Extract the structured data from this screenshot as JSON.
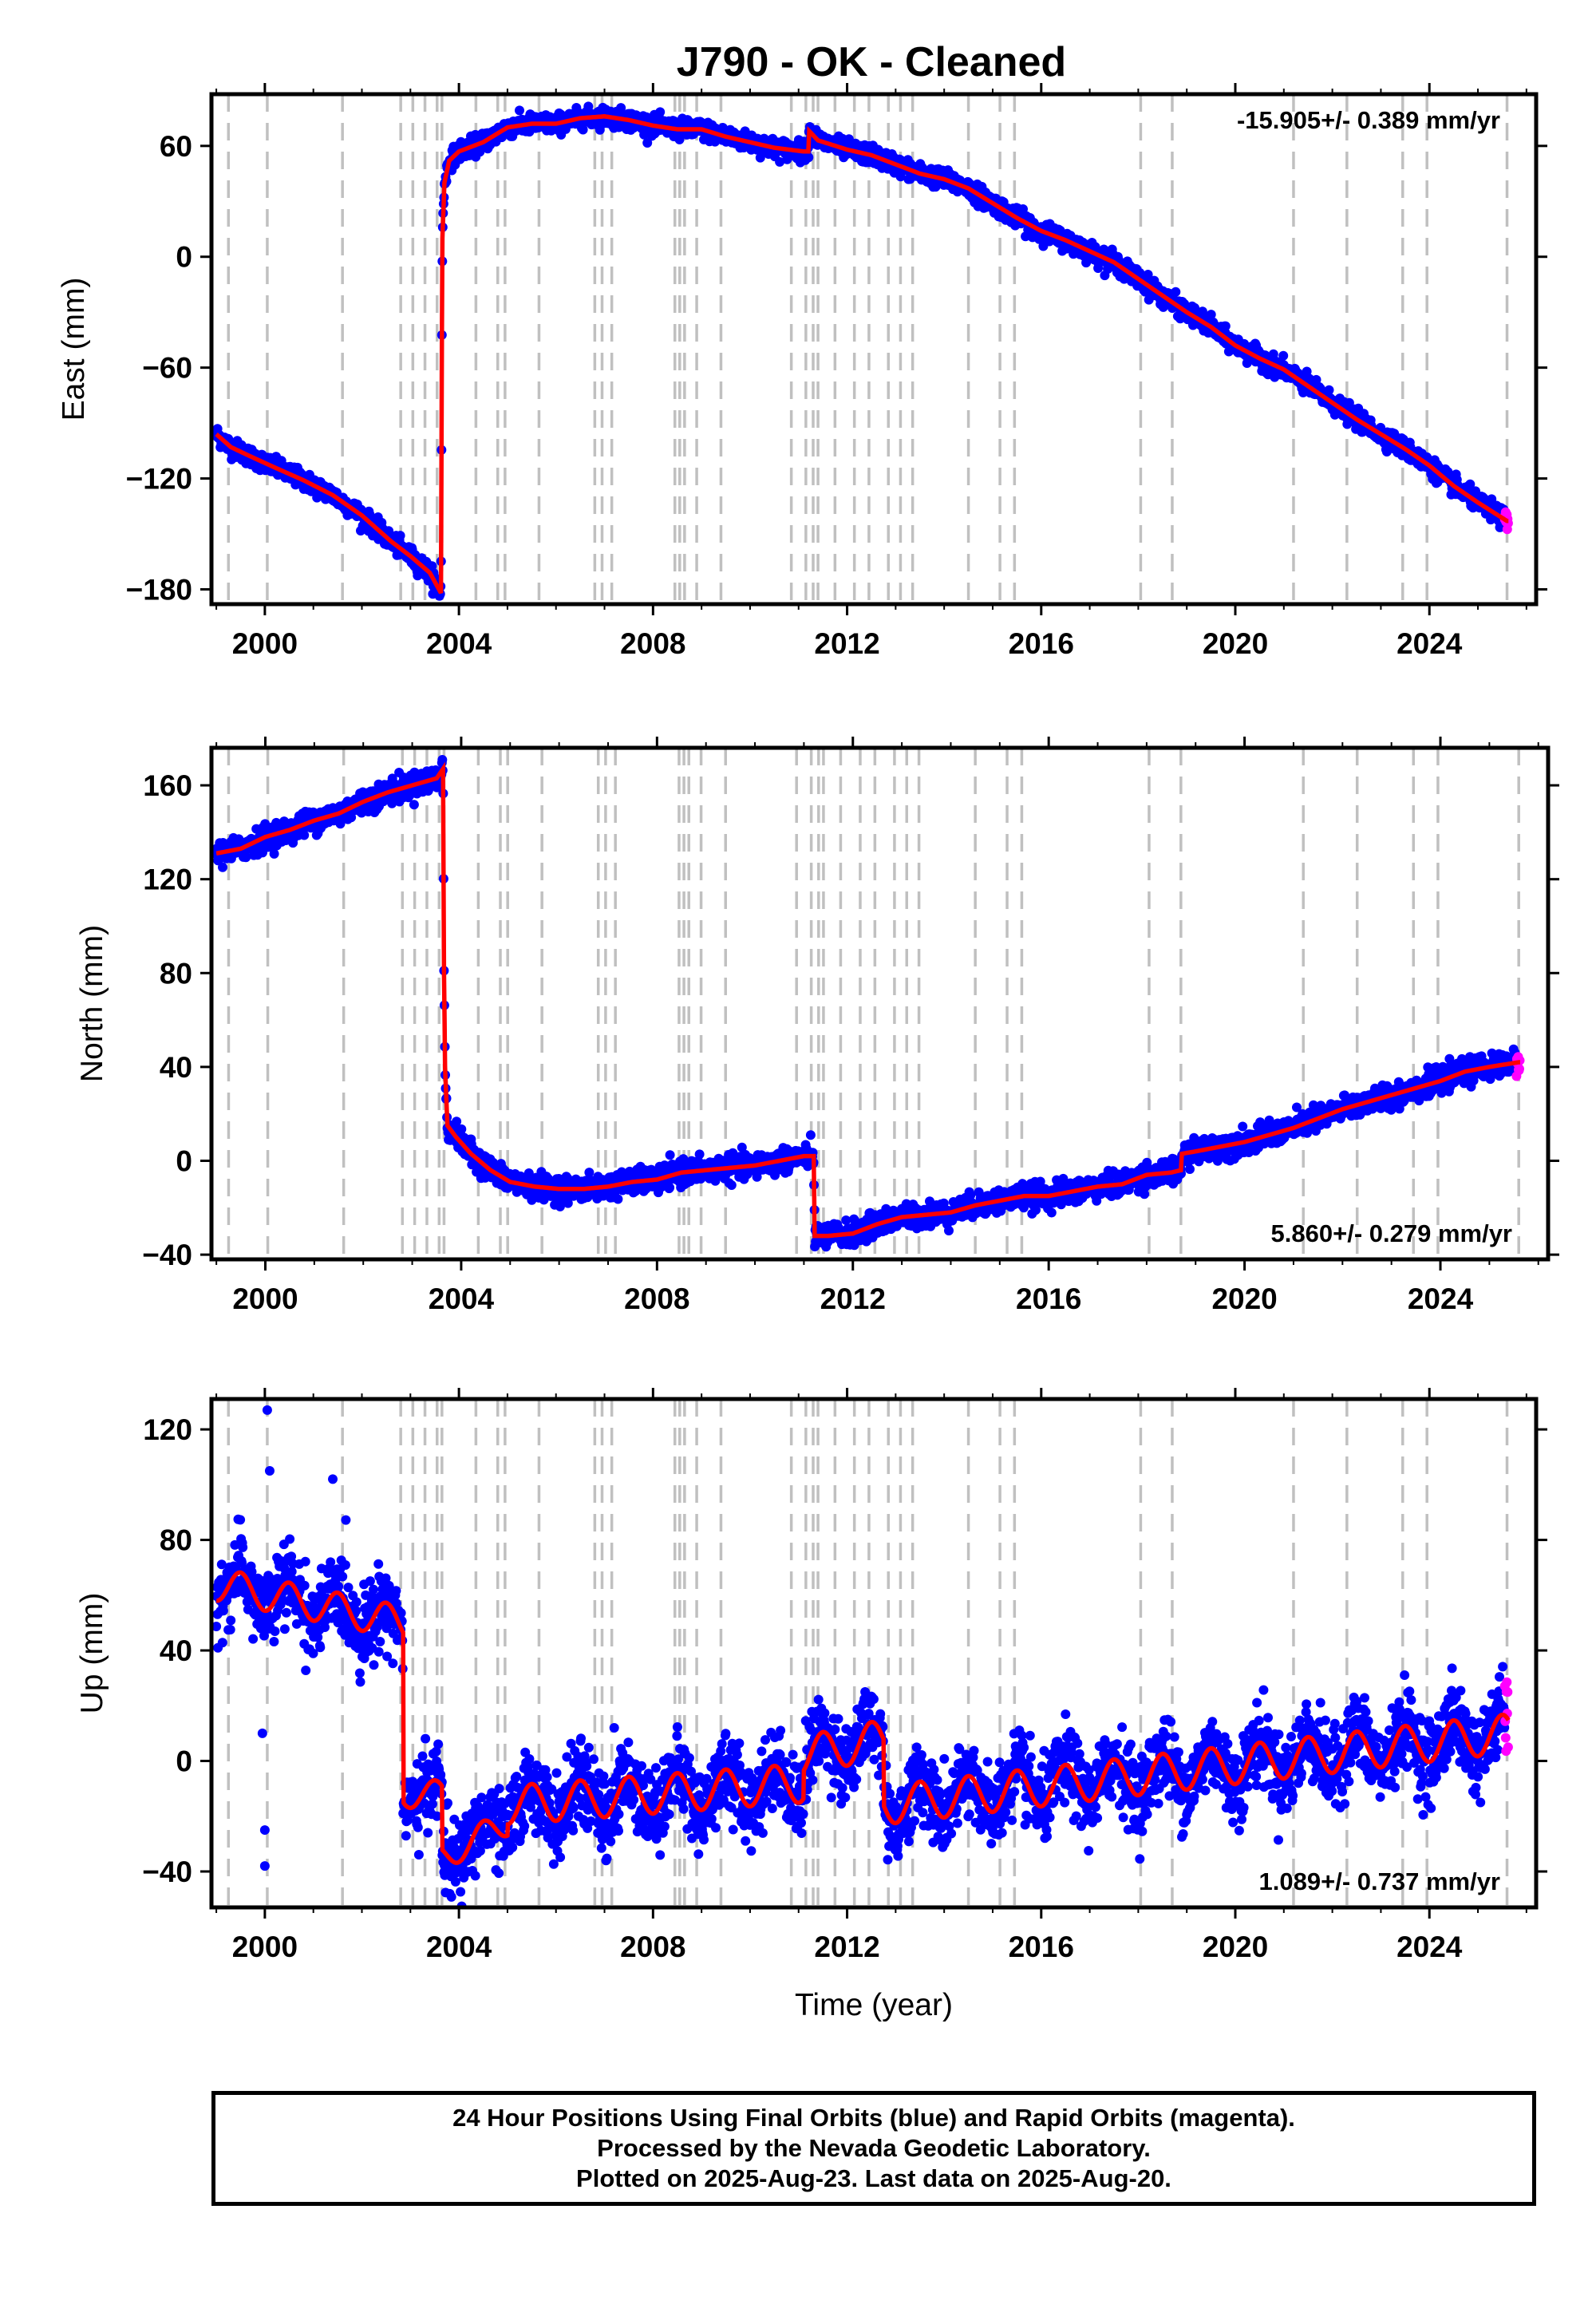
{
  "title": "J790  - OK - Cleaned",
  "footer": {
    "line1": "24 Hour Positions Using Final Orbits (blue) and Rapid Orbits (magenta).",
    "line2": "Processed by the Nevada Geodetic Laboratory.",
    "line3": "Plotted on 2025-Aug-23. Last data on 2025-Aug-20."
  },
  "colors": {
    "final_orbits": "#0000ff",
    "rapid_orbits": "#ff00ff",
    "model": "#ff0000",
    "event_lines": "#c0c0c0"
  },
  "chart_data": [
    {
      "type": "scatter",
      "ylabel": "East (mm)",
      "xlabel": "",
      "xlim": [
        1998.9,
        2026.2
      ],
      "ylim": [
        -188,
        88
      ],
      "xticks": [
        "2000",
        "2004",
        "2008",
        "2012",
        "2016",
        "2020",
        "2024"
      ],
      "yticks": [
        "60",
        "0",
        "−60",
        "−120",
        "−180"
      ],
      "ytick_values": [
        60,
        0,
        -60,
        -120,
        -180
      ],
      "rate": "-15.905+/- 0.389 mm/yr",
      "rate_position": "top-right",
      "model_points": [
        [
          1999.0,
          -96
        ],
        [
          1999.3,
          -103
        ],
        [
          1999.7,
          -108
        ],
        [
          2000.2,
          -114
        ],
        [
          2000.8,
          -121
        ],
        [
          2001.4,
          -129
        ],
        [
          2002.0,
          -140
        ],
        [
          2002.6,
          -154
        ],
        [
          2003.0,
          -162
        ],
        [
          2003.4,
          -171
        ],
        [
          2003.63,
          -182
        ],
        [
          2003.65,
          -40
        ],
        [
          2003.66,
          10
        ],
        [
          2003.7,
          40
        ],
        [
          2003.8,
          52
        ],
        [
          2004.0,
          57
        ],
        [
          2004.5,
          62
        ],
        [
          2005.0,
          70
        ],
        [
          2005.5,
          72
        ],
        [
          2006.0,
          72
        ],
        [
          2006.5,
          75
        ],
        [
          2007.0,
          76
        ],
        [
          2007.5,
          74
        ],
        [
          2008.0,
          71
        ],
        [
          2008.5,
          69
        ],
        [
          2009.0,
          69
        ],
        [
          2009.5,
          65
        ],
        [
          2010.0,
          62
        ],
        [
          2010.5,
          59
        ],
        [
          2011.1,
          57
        ],
        [
          2011.2,
          57
        ],
        [
          2011.22,
          68
        ],
        [
          2011.4,
          63
        ],
        [
          2012.0,
          58
        ],
        [
          2012.5,
          55
        ],
        [
          2013.0,
          50
        ],
        [
          2013.5,
          45
        ],
        [
          2014.0,
          42
        ],
        [
          2014.5,
          37
        ],
        [
          2015.0,
          29
        ],
        [
          2015.5,
          21
        ],
        [
          2016.0,
          14
        ],
        [
          2016.5,
          9
        ],
        [
          2017.0,
          3
        ],
        [
          2017.5,
          -3
        ],
        [
          2018.0,
          -12
        ],
        [
          2018.5,
          -21
        ],
        [
          2019.0,
          -30
        ],
        [
          2019.5,
          -38
        ],
        [
          2020.0,
          -48
        ],
        [
          2020.5,
          -55
        ],
        [
          2021.0,
          -61
        ],
        [
          2021.5,
          -70
        ],
        [
          2022.0,
          -79
        ],
        [
          2022.5,
          -88
        ],
        [
          2023.0,
          -96
        ],
        [
          2023.5,
          -104
        ],
        [
          2024.0,
          -113
        ],
        [
          2024.5,
          -124
        ],
        [
          2025.0,
          -133
        ],
        [
          2025.6,
          -143
        ]
      ],
      "rapid_range": [
        2025.55,
        2025.63
      ],
      "noise_mm": 2.5
    },
    {
      "type": "scatter",
      "ylabel": "North (mm)",
      "xlabel": "",
      "xlim": [
        1998.9,
        2026.2
      ],
      "ylim": [
        -42,
        176
      ],
      "xticks": [
        "2000",
        "2004",
        "2008",
        "2012",
        "2016",
        "2020",
        "2024"
      ],
      "yticks": [
        "160",
        "120",
        "80",
        "40",
        "0",
        "−40"
      ],
      "ytick_values": [
        160,
        120,
        80,
        40,
        0,
        -40
      ],
      "rate": "5.860+/- 0.279 mm/yr",
      "rate_position": "bottom-right",
      "model_points": [
        [
          1999.0,
          131
        ],
        [
          1999.5,
          133
        ],
        [
          2000.0,
          138
        ],
        [
          2000.5,
          141
        ],
        [
          2001.0,
          145
        ],
        [
          2001.5,
          148
        ],
        [
          2002.0,
          153
        ],
        [
          2002.5,
          157
        ],
        [
          2003.0,
          160
        ],
        [
          2003.5,
          163
        ],
        [
          2003.63,
          167
        ],
        [
          2003.65,
          80
        ],
        [
          2003.67,
          40
        ],
        [
          2003.72,
          15
        ],
        [
          2003.9,
          10
        ],
        [
          2004.2,
          3
        ],
        [
          2004.6,
          -4
        ],
        [
          2005.0,
          -9
        ],
        [
          2005.5,
          -11
        ],
        [
          2006.0,
          -12
        ],
        [
          2006.5,
          -12
        ],
        [
          2007.0,
          -11
        ],
        [
          2007.5,
          -9
        ],
        [
          2008.0,
          -8
        ],
        [
          2008.5,
          -5
        ],
        [
          2009.0,
          -4
        ],
        [
          2009.5,
          -3
        ],
        [
          2010.0,
          -2
        ],
        [
          2010.5,
          0
        ],
        [
          2011.0,
          2
        ],
        [
          2011.2,
          2
        ],
        [
          2011.22,
          -32
        ],
        [
          2011.5,
          -32
        ],
        [
          2012.0,
          -31
        ],
        [
          2012.5,
          -27
        ],
        [
          2013.0,
          -24
        ],
        [
          2013.5,
          -23
        ],
        [
          2014.0,
          -22
        ],
        [
          2014.5,
          -19
        ],
        [
          2015.0,
          -17
        ],
        [
          2015.5,
          -15
        ],
        [
          2016.0,
          -15
        ],
        [
          2016.5,
          -13
        ],
        [
          2017.0,
          -11
        ],
        [
          2017.5,
          -10
        ],
        [
          2018.0,
          -6
        ],
        [
          2018.5,
          -5
        ],
        [
          2018.7,
          -4
        ],
        [
          2018.72,
          3
        ],
        [
          2019.0,
          4
        ],
        [
          2019.5,
          6
        ],
        [
          2020.0,
          8
        ],
        [
          2020.5,
          11
        ],
        [
          2021.0,
          14
        ],
        [
          2021.5,
          18
        ],
        [
          2022.0,
          22
        ],
        [
          2022.5,
          25
        ],
        [
          2023.0,
          28
        ],
        [
          2023.5,
          31
        ],
        [
          2024.0,
          34
        ],
        [
          2024.5,
          38
        ],
        [
          2025.0,
          40
        ],
        [
          2025.6,
          42
        ]
      ],
      "rapid_range": [
        2025.55,
        2025.63
      ],
      "noise_mm": 2.5
    },
    {
      "type": "scatter",
      "ylabel": "Up (mm)",
      "xlabel": "Time (year)",
      "xlim": [
        1998.9,
        2026.2
      ],
      "ylim": [
        -53,
        131
      ],
      "xticks": [
        "2000",
        "2004",
        "2008",
        "2012",
        "2016",
        "2020",
        "2024"
      ],
      "yticks": [
        "120",
        "80",
        "40",
        "0",
        "−40"
      ],
      "ytick_values": [
        120,
        80,
        40,
        0,
        -40
      ],
      "rate": "1.089+/- 0.737 mm/yr",
      "rate_position": "bottom-right",
      "segments": [
        {
          "from": 1999.0,
          "to": 2002.85,
          "start": 64,
          "end": 50,
          "amp": 6
        },
        {
          "from": 2002.85,
          "to": 2003.65,
          "start": -12,
          "end": -12,
          "amp": 5
        },
        {
          "from": 2003.65,
          "to": 2005.0,
          "start": -35,
          "end": -22,
          "amp": 5
        },
        {
          "from": 2005.0,
          "to": 2011.1,
          "start": -16,
          "end": -8,
          "amp": 7
        },
        {
          "from": 2011.1,
          "to": 2012.75,
          "start": 2,
          "end": 8,
          "amp": 7
        },
        {
          "from": 2012.75,
          "to": 2025.65,
          "start": -16,
          "end": 10,
          "amp": 7
        }
      ],
      "rapid_range": [
        2025.55,
        2025.63
      ],
      "noise_mm": 7
    }
  ],
  "event_lines_years": [
    1999.25,
    2000.05,
    2001.6,
    2002.8,
    2003.05,
    2003.3,
    2003.55,
    2003.65,
    2004.35,
    2004.8,
    2004.95,
    2005.65,
    2006.8,
    2006.95,
    2007.15,
    2008.45,
    2008.55,
    2008.65,
    2008.9,
    2009.4,
    2010.85,
    2011.15,
    2011.3,
    2011.4,
    2011.75,
    2012.15,
    2012.45,
    2012.85,
    2013.1,
    2013.35,
    2014.5,
    2015.15,
    2015.45,
    2018.05,
    2018.7,
    2021.2,
    2022.3,
    2023.45,
    2023.95,
    2025.6
  ]
}
